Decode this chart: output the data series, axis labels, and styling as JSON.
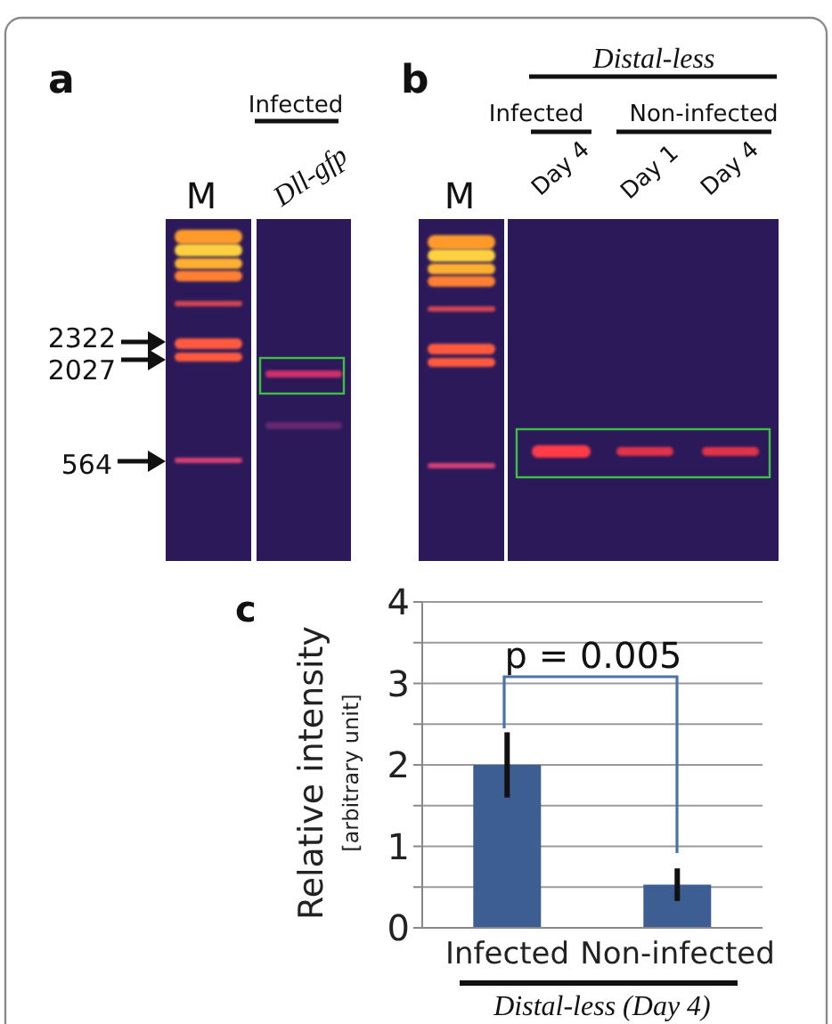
{
  "chart_data": {
    "type": "bar",
    "categories": [
      "Infected",
      "Non-infected"
    ],
    "values": [
      2.0,
      0.53
    ],
    "errors": [
      0.4,
      0.2
    ],
    "color": "#3c5e92",
    "ylim": [
      0,
      4
    ],
    "yticks": [
      0,
      {
        "value": 0.5,
        "label": null
      },
      1,
      {
        "value": 1.5,
        "label": null
      },
      2,
      {
        "value": 2.5,
        "label": null
      },
      3,
      {
        "value": 3.5,
        "label": null
      },
      4
    ],
    "grid": "y",
    "ylabel": "Relative intensity\n[arbitrary unit]",
    "xlabel": "Distal-less (Day 4)",
    "annotations": [
      "a",
      "Infected",
      "Dll-gfp",
      "M",
      "2322",
      "2027",
      "564",
      "b",
      "Distal-less",
      "Infected",
      "Non-infected",
      "M",
      "Day 4",
      "Day 1",
      "Day 4",
      "c",
      "p = 0.005"
    ]
  }
}
